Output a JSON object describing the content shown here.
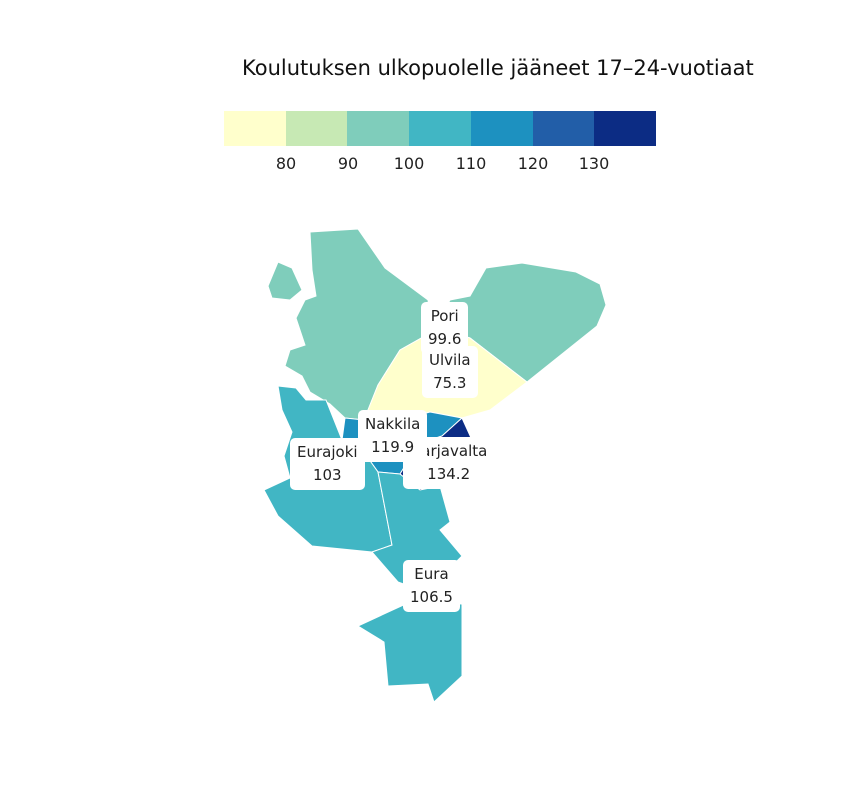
{
  "title": "Koulutuksen ulkopuolelle jääneet 17–24-vuotiaat",
  "legend": {
    "colors": [
      "#ffffcc",
      "#c7e9b4",
      "#7fcdbb",
      "#41b6c4",
      "#1d91c0",
      "#225ea8",
      "#0c2c84"
    ],
    "ticks": [
      "80",
      "90",
      "100",
      "110",
      "120",
      "130"
    ],
    "tick_values": [
      80,
      90,
      100,
      110,
      120,
      130
    ],
    "range": [
      70,
      140
    ]
  },
  "regions": [
    {
      "name": "Pori",
      "value": "99.6",
      "color": "#7fcdbb"
    },
    {
      "name": "Ulvila",
      "value": "75.3",
      "color": "#ffffcc"
    },
    {
      "name": "Nakkila",
      "value": "119.9",
      "color": "#1d91c0"
    },
    {
      "name": "Harjavalta",
      "value": "134.2",
      "color": "#0c2c84"
    },
    {
      "name": "Eurajoki",
      "value": "103",
      "color": "#41b6c4"
    },
    {
      "name": "Eura",
      "value": "106.5",
      "color": "#41b6c4"
    }
  ]
}
